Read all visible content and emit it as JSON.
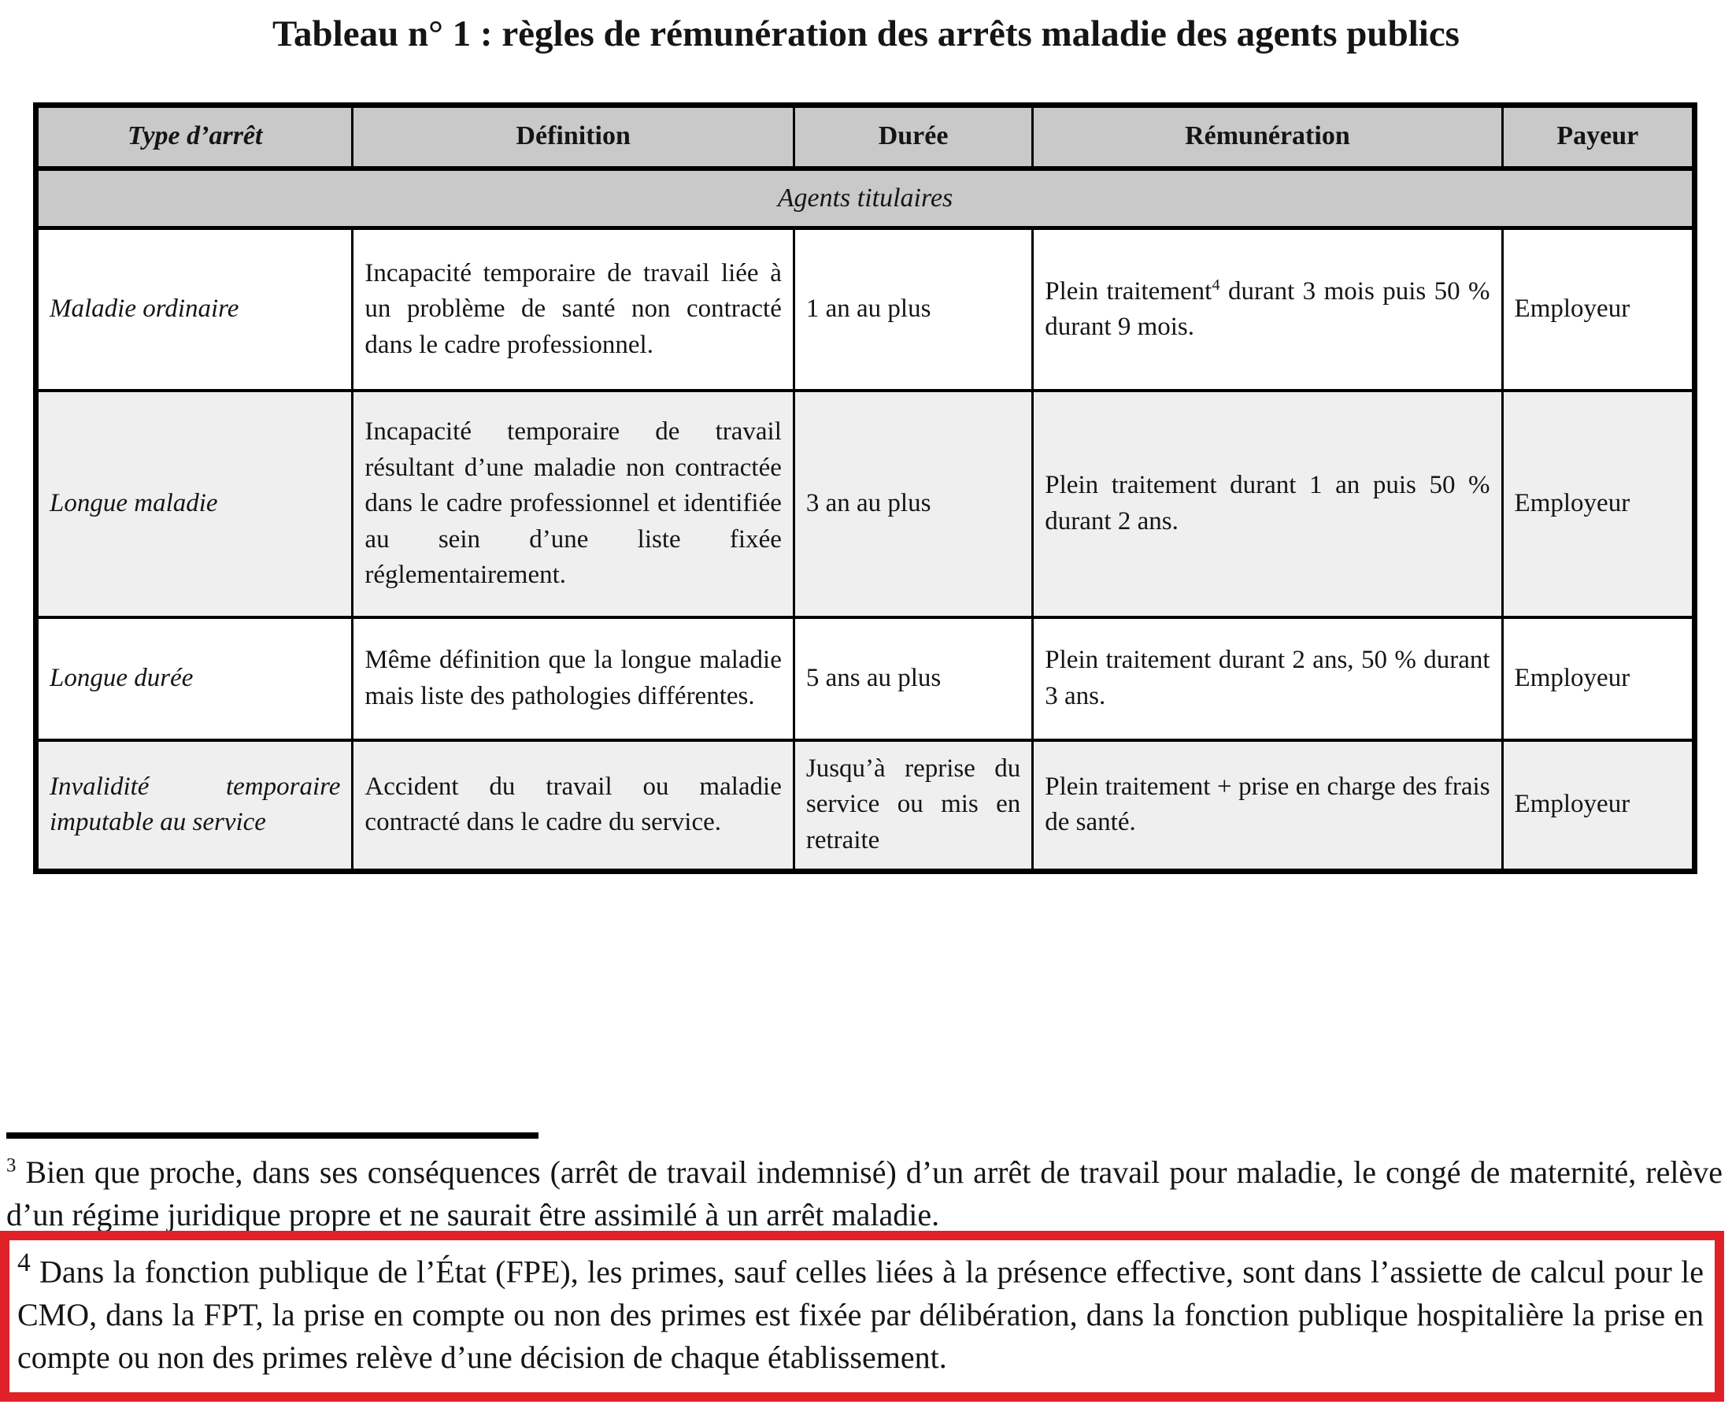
{
  "page": {
    "title": "Tableau n° 1 : règles de rémunération des arrêts maladie des agents publics"
  },
  "table": {
    "headers": {
      "type": "Type d’arrêt",
      "definition": "Définition",
      "duration": "Durée",
      "remuneration": "Rémunération",
      "payer": "Payeur"
    },
    "section_label": "Agents titulaires",
    "rows": [
      {
        "type": "Maladie ordinaire",
        "definition": "Incapacité temporaire de travail liée à un problème de santé non contracté dans le cadre professionnel.",
        "duration": "1 an au plus",
        "remuneration_pre": "Plein traitement",
        "remuneration_sup": "4",
        "remuneration_post": " durant 3 mois puis 50 % durant 9 mois.",
        "payer": "Employeur"
      },
      {
        "type": "Longue maladie",
        "definition": "Incapacité temporaire de travail résultant d’une maladie non contractée dans le cadre professionnel et identifiée au sein d’une liste fixée réglementairement.",
        "duration": "3 an au plus",
        "remuneration": "Plein traitement durant 1 an puis 50 % durant 2 ans.",
        "payer": "Employeur"
      },
      {
        "type": "Longue durée",
        "definition": "Même définition que la longue maladie mais liste des pathologies différentes.",
        "duration": "5 ans au plus",
        "remuneration": "Plein traitement durant 2 ans, 50 % durant 3 ans.",
        "payer": "Employeur"
      },
      {
        "type": "Invalidité temporaire imputable au service",
        "definition": "Accident du travail ou maladie contracté dans le cadre du service.",
        "duration": "Jusqu’à reprise du service ou mis en retraite",
        "remuneration": "Plein traitement + prise en charge des frais de santé.",
        "payer": "Employeur"
      }
    ]
  },
  "footnotes": {
    "note3": {
      "marker": "3",
      "text": " Bien que proche, dans ses conséquences (arrêt de travail indemnisé) d’un arrêt de travail pour maladie, le congé de maternité, relève d’un régime juridique propre et ne saurait être assimilé à un arrêt maladie."
    },
    "note4": {
      "marker": "4",
      "text": " Dans la fonction publique de l’État (FPE), les primes, sauf celles liées à la présence effective, sont dans l’assiette de calcul pour le CMO, dans la FPT, la prise en compte ou non des primes est fixée par délibération, dans la fonction publique hospitalière la prise en compte ou non des primes relève d’une décision de chaque établissement."
    }
  },
  "colors": {
    "header_bg": "#c9c9c9",
    "alt_row_bg": "#efefef",
    "table_border": "#000000",
    "highlight_border": "#e02228"
  }
}
